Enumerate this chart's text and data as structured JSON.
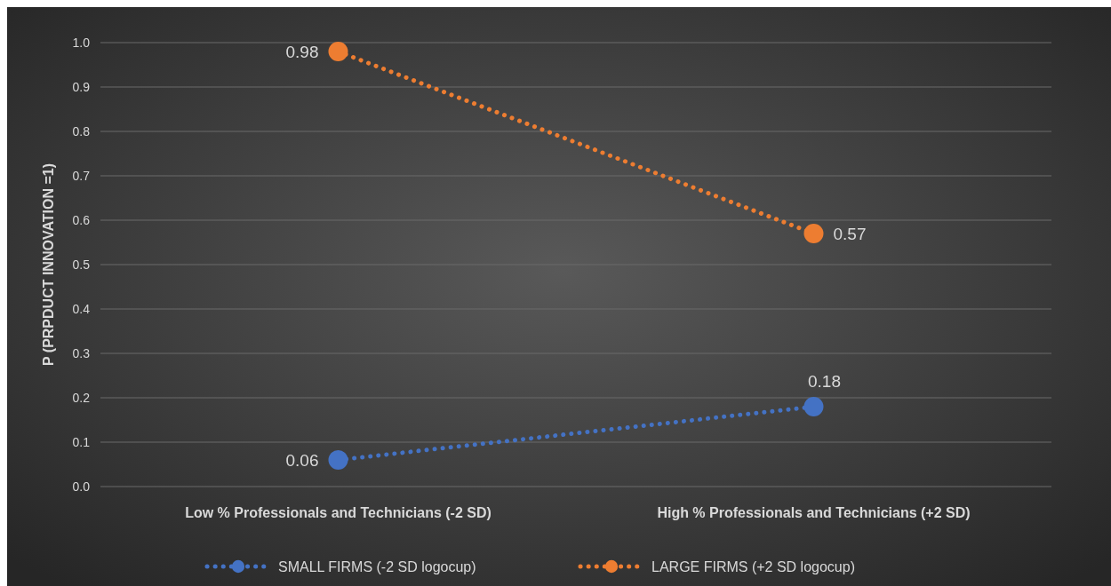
{
  "chart_data": {
    "type": "line",
    "ylabel": "P (PRPDUCT INNOVATION =1)",
    "categories": [
      "Low % Professionals and Technicians (-2 SD)",
      "High % Professionals and Technicians (+2 SD)"
    ],
    "series": [
      {
        "name": "SMALL FIRMS (-2 SD logocup)",
        "color": "#4472c4",
        "values": [
          0.06,
          0.18
        ]
      },
      {
        "name": "LARGE FIRMS (+2 SD logocup)",
        "color": "#ed7d31",
        "values": [
          0.98,
          0.57
        ]
      }
    ],
    "ylim": [
      0,
      1
    ],
    "yticks": [
      {
        "value": 0,
        "label": "0.0"
      },
      {
        "value": 0.1,
        "label": "0.1"
      },
      {
        "value": 0.2,
        "label": "0.2"
      },
      {
        "value": 0.3,
        "label": "0.3"
      },
      {
        "value": 0.4,
        "label": "0.4"
      },
      {
        "value": 0.5,
        "label": "0.5"
      },
      {
        "value": 0.6,
        "label": "0.6"
      },
      {
        "value": 0.7,
        "label": "0.7"
      },
      {
        "value": 0.8,
        "label": "0.8"
      },
      {
        "value": 0.9,
        "label": "0.9"
      },
      {
        "value": 1,
        "label": "1.0"
      }
    ],
    "grid": "y",
    "legend": "bottom",
    "marker": "circle",
    "line_style": "dotted",
    "data_labels": true
  }
}
